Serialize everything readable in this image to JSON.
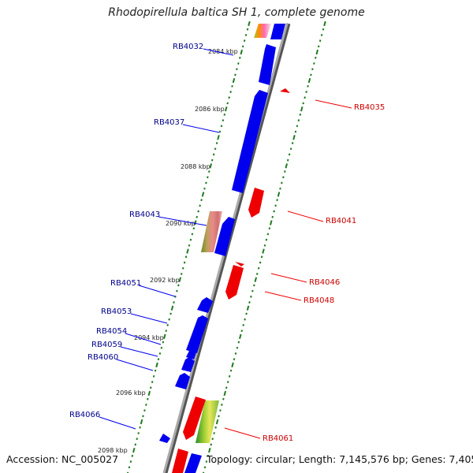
{
  "header": {
    "title": "Rhodopirellula baltica SH 1, complete genome"
  },
  "footer": {
    "accession": "Accession: NC_005027",
    "topology": "Topology: circular; Length: 7,145,576 bp; Genes: 7,405"
  },
  "colors": {
    "plus_strand": "#0000ee",
    "minus_strand": "#ee0000",
    "plus_label": "#00008b",
    "minus_label": "#cc0000",
    "ticks": "#1f7a1f",
    "backbone": "#888888"
  },
  "kbp_ticks": [
    {
      "label": "2084 kbp"
    },
    {
      "label": "2086 kbp"
    },
    {
      "label": "2088 kbp"
    },
    {
      "label": "2090 kbp"
    },
    {
      "label": "2092 kbp"
    },
    {
      "label": "2094 kbp"
    },
    {
      "label": "2096 kbp"
    },
    {
      "label": "2098 kbp"
    }
  ],
  "plus_genes": [
    {
      "label": "RB4032"
    },
    {
      "label": "RB4037"
    },
    {
      "label": "RB4043"
    },
    {
      "label": "RB4051"
    },
    {
      "label": "RB4053"
    },
    {
      "label": "RB4054"
    },
    {
      "label": "RB4059"
    },
    {
      "label": "RB4060"
    },
    {
      "label": "RB4066"
    }
  ],
  "minus_genes": [
    {
      "label": "RB4035"
    },
    {
      "label": "RB4041"
    },
    {
      "label": "RB4046"
    },
    {
      "label": "RB4048"
    },
    {
      "label": "RB4061"
    }
  ]
}
